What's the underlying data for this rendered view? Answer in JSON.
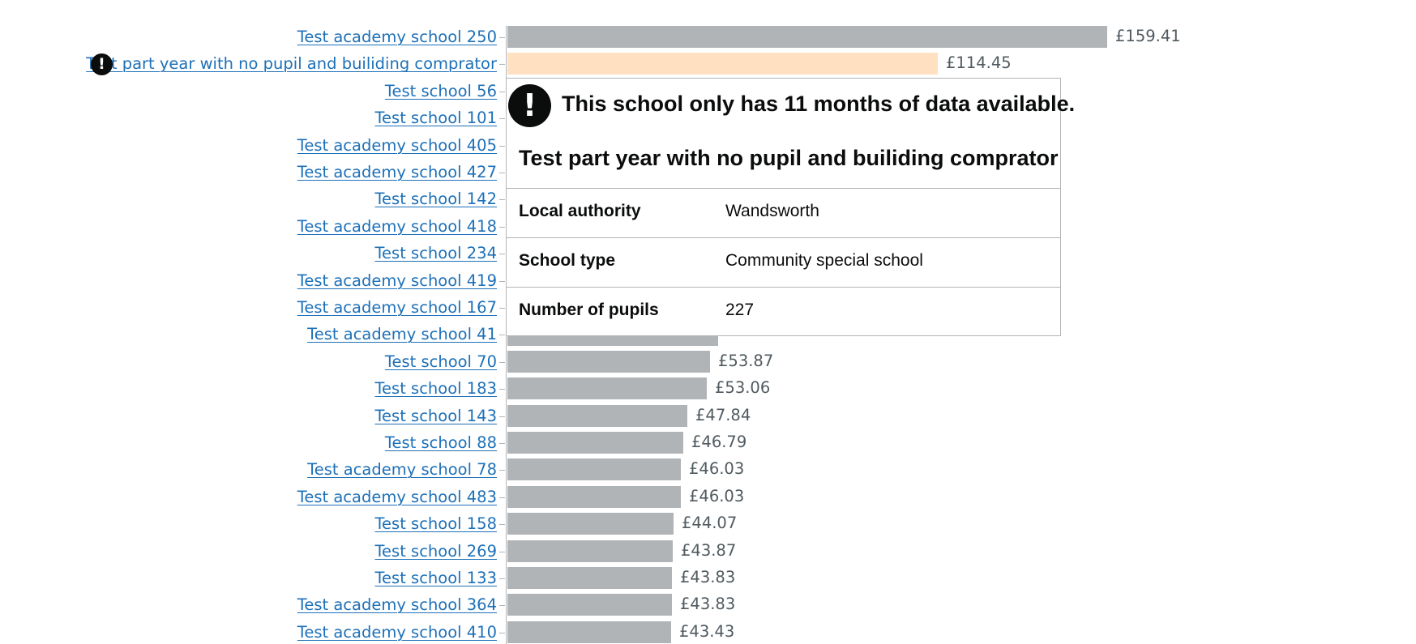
{
  "chart_data": {
    "type": "bar",
    "orientation": "horizontal",
    "xlim": [
      0,
      159.41
    ],
    "grid": false,
    "highlight_category": "Test part year with no pupil and builiding comprator",
    "colors": {
      "bar": "#b1b4b6",
      "highlight": "#ffe1c1",
      "link": "#1d70b8",
      "value_text": "#505a5f"
    },
    "categories": [
      "Test academy school 250",
      "Test part year with no pupil and builiding comprator",
      "Test school 56",
      "Test school 101",
      "Test academy school 405",
      "Test academy school 427",
      "Test school 142",
      "Test academy school 418",
      "Test school 234",
      "Test academy school 419",
      "Test academy school 167",
      "Test academy school 41",
      "Test school 70",
      "Test school 183",
      "Test school 143",
      "Test school 88",
      "Test academy school 78",
      "Test academy school 483",
      "Test school 158",
      "Test school 269",
      "Test school 133",
      "Test academy school 364",
      "Test academy school 410"
    ],
    "values": [
      159.41,
      114.45,
      null,
      null,
      null,
      null,
      null,
      null,
      null,
      null,
      null,
      null,
      53.87,
      53.06,
      47.84,
      46.79,
      46.03,
      46.03,
      44.07,
      43.87,
      43.83,
      43.83,
      43.43
    ],
    "value_labels": [
      "£159.41",
      "£114.45",
      "",
      "",
      "",
      "",
      "",
      "",
      "",
      "",
      "",
      "",
      "£53.87",
      "£53.06",
      "£47.84",
      "£46.79",
      "£46.03",
      "£46.03",
      "£44.07",
      "£43.87",
      "£43.83",
      "£43.83",
      "£43.43"
    ],
    "warning_categories": [
      "Test part year with no pupil and builiding comprator"
    ]
  },
  "tooltip": {
    "icon": "exclamation-icon",
    "warning": "This school only has 11 months of data available.",
    "title": "Test part year with no pupil and builiding comprator",
    "rows": [
      {
        "label": "Local authority",
        "value": "Wandsworth"
      },
      {
        "label": "School type",
        "value": "Community special school"
      },
      {
        "label": "Number of pupils",
        "value": "227"
      }
    ]
  }
}
